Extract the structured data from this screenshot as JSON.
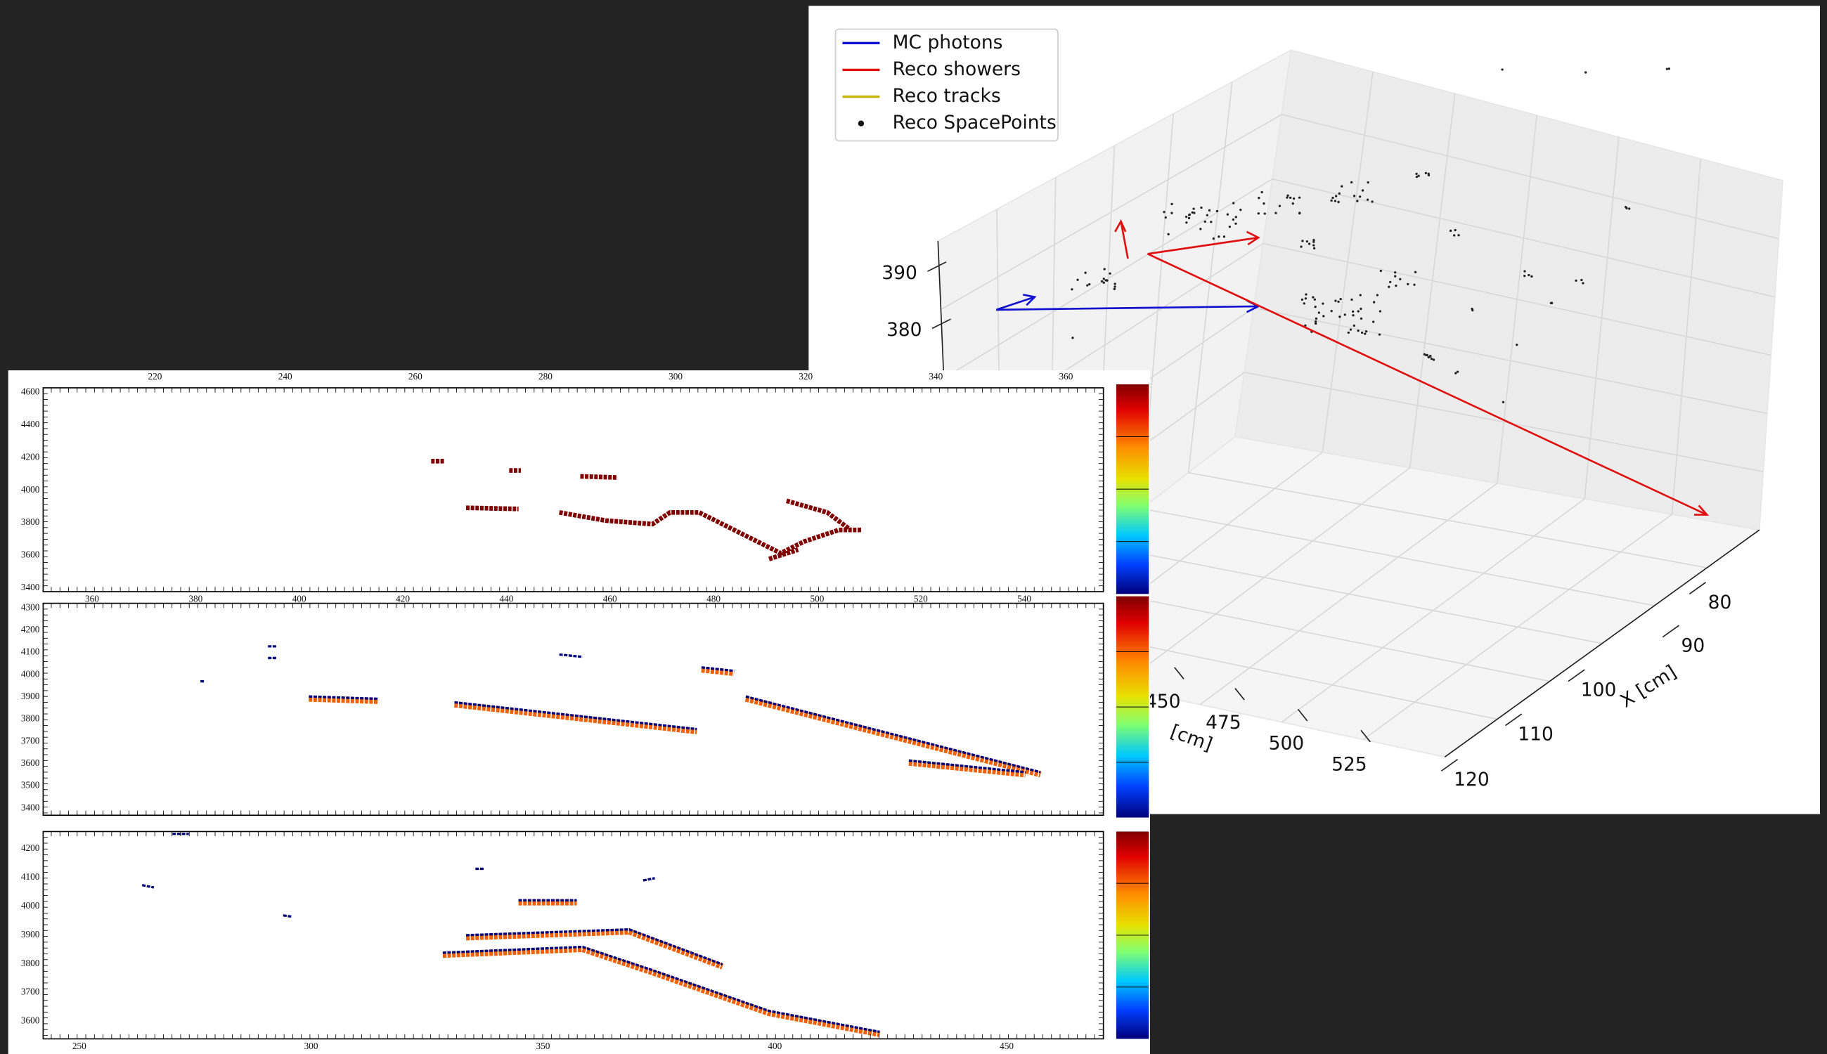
{
  "window_3d": {
    "legend": [
      "MC photons",
      "Reco showers",
      "Reco tracks",
      "Reco SpacePoints"
    ],
    "z_ticks": [
      "390",
      "380"
    ],
    "y_ticks": [
      "450",
      "475",
      "500",
      "525"
    ],
    "y_label": "[cm]",
    "x_ticks": [
      "80",
      "90",
      "100",
      "110",
      "120"
    ],
    "x_label": "X [cm]"
  },
  "event_display": {
    "panels": [
      {
        "x_ticks_top": [
          "220",
          "240",
          "260",
          "280",
          "300",
          "320",
          "340",
          "360"
        ],
        "x_ticks_bottom": [
          "360",
          "380",
          "400",
          "420",
          "440",
          "460",
          "480",
          "500",
          "520",
          "540"
        ],
        "y_ticks": [
          "3400",
          "3600",
          "3800",
          "4000",
          "4200",
          "4400",
          "4600"
        ]
      },
      {
        "y_ticks": [
          "3400",
          "3500",
          "3600",
          "3700",
          "3800",
          "3900",
          "4000",
          "4100",
          "4200",
          "4300"
        ]
      },
      {
        "x_ticks_bottom": [
          "250",
          "300",
          "350",
          "400",
          "450"
        ],
        "y_ticks": [
          "3600",
          "3700",
          "3800",
          "3900",
          "4000",
          "4100",
          "4200"
        ]
      }
    ]
  }
}
